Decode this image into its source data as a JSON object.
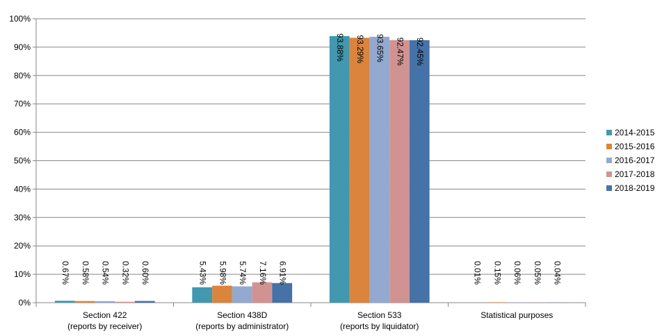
{
  "chart_data": {
    "type": "bar",
    "categories": [
      [
        "Section 422",
        "(reports by receiver)"
      ],
      [
        "Section 438D",
        "(reports by administrator)"
      ],
      [
        "Section 533",
        "(reports by liquidator)"
      ],
      [
        "Statistical purposes"
      ]
    ],
    "series": [
      {
        "name": "2014-2015",
        "color": "#4198AF",
        "values": [
          0.67,
          5.43,
          93.88,
          0.01
        ],
        "labels": [
          "0.67%",
          "5.43%",
          "93.88%",
          "0.01%"
        ]
      },
      {
        "name": "2015-2016",
        "color": "#DB843D",
        "values": [
          0.58,
          5.98,
          93.29,
          0.15
        ],
        "labels": [
          "0.58%",
          "5.98%",
          "93.29%",
          "0.15%"
        ]
      },
      {
        "name": "2016-2017",
        "color": "#93A9CF",
        "values": [
          0.54,
          5.74,
          93.65,
          0.06
        ],
        "labels": [
          "0.54%",
          "5.74%",
          "93.65%",
          "0.06%"
        ]
      },
      {
        "name": "2017-2018",
        "color": "#D19392",
        "values": [
          0.32,
          7.16,
          92.47,
          0.05
        ],
        "labels": [
          "0.32%",
          "7.16%",
          "92.47%",
          "0.05%"
        ]
      },
      {
        "name": "2018-2019",
        "color": "#4572A7",
        "values": [
          0.6,
          6.91,
          92.45,
          0.04
        ],
        "labels": [
          "0.60%",
          "6.91%",
          "92.45%",
          "0.04%"
        ]
      }
    ],
    "y_ticks": [
      "0%",
      "10%",
      "20%",
      "30%",
      "40%",
      "50%",
      "60%",
      "70%",
      "80%",
      "90%",
      "100%"
    ],
    "ylim": [
      0,
      100
    ],
    "grid": true,
    "legend_position": "right",
    "title": "",
    "xlabel": "",
    "ylabel": ""
  }
}
